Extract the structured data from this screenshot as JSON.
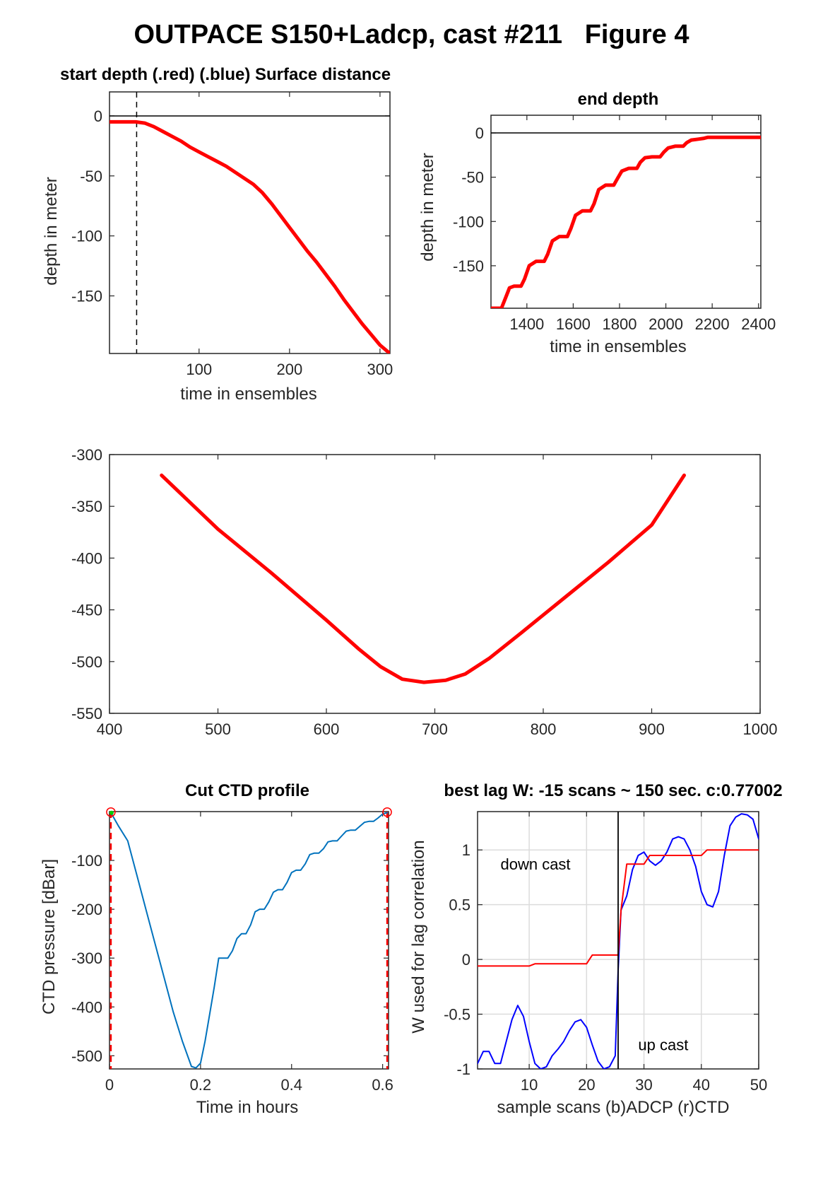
{
  "figure_title": "OUTPACE S150+Ladcp, cast #211   Figure 4",
  "colors": {
    "red": "#ff0000",
    "blue": "#0000ff",
    "ctd_blue": "#0072bd",
    "axis": "#262626",
    "grid": "#dcdcdc",
    "green": "#00cc00"
  },
  "chart_data": [
    {
      "id": "start",
      "type": "line",
      "title": "start depth (.red) (.blue) Surface distance",
      "xlabel": "time in ensembles",
      "ylabel": "depth in meter",
      "xlim": [
        1,
        311
      ],
      "ylim": [
        -198,
        20
      ],
      "xticks": [
        100,
        200,
        300
      ],
      "yticks": [
        0,
        -50,
        -100,
        -150
      ],
      "hline": 0,
      "vline_dashed": 31,
      "series": [
        {
          "color": "red",
          "x": [
            1,
            10,
            20,
            30,
            40,
            50,
            60,
            70,
            80,
            90,
            100,
            110,
            120,
            130,
            140,
            150,
            160,
            170,
            180,
            190,
            200,
            210,
            220,
            230,
            240,
            250,
            260,
            270,
            280,
            290,
            300,
            311
          ],
          "y": [
            -5,
            -5,
            -5,
            -5,
            -6,
            -9,
            -13,
            -17,
            -21,
            -26,
            -30,
            -34,
            -38,
            -42,
            -47,
            -52,
            -57,
            -64,
            -73,
            -83,
            -93,
            -103,
            -113,
            -122,
            -132,
            -142,
            -153,
            -163,
            -173,
            -182,
            -191,
            -198
          ]
        }
      ]
    },
    {
      "id": "end",
      "type": "line",
      "title": "end depth",
      "xlabel": "time in ensembles",
      "ylabel": "depth in meter",
      "xlim": [
        1245,
        2410
      ],
      "ylim": [
        -198,
        20
      ],
      "xticks": [
        1400,
        1600,
        1800,
        2000,
        2200,
        2400
      ],
      "yticks": [
        0,
        -50,
        -100,
        -150
      ],
      "hline": 0,
      "series": [
        {
          "color": "red",
          "x": [
            1245,
            1290,
            1310,
            1325,
            1345,
            1375,
            1390,
            1410,
            1440,
            1475,
            1490,
            1510,
            1540,
            1575,
            1590,
            1610,
            1640,
            1675,
            1690,
            1710,
            1740,
            1775,
            1790,
            1810,
            1840,
            1875,
            1890,
            1910,
            1940,
            1975,
            1990,
            2010,
            2040,
            2075,
            2090,
            2110,
            2140,
            2165,
            2180,
            2200,
            2300,
            2410
          ],
          "y": [
            -198,
            -198,
            -185,
            -175,
            -173,
            -173,
            -165,
            -150,
            -145,
            -145,
            -137,
            -122,
            -117,
            -117,
            -108,
            -93,
            -88,
            -88,
            -80,
            -64,
            -59,
            -59,
            -52,
            -43,
            -40,
            -40,
            -33,
            -28,
            -27,
            -27,
            -22,
            -17,
            -15,
            -15,
            -11,
            -8,
            -7,
            -6,
            -5,
            -5,
            -5,
            -5
          ]
        }
      ]
    },
    {
      "id": "middle",
      "type": "line",
      "xlim": [
        400,
        1000
      ],
      "ylim": [
        -550,
        -300
      ],
      "xticks": [
        400,
        500,
        600,
        700,
        800,
        900,
        1000
      ],
      "yticks": [
        -300,
        -350,
        -400,
        -450,
        -500,
        -550
      ],
      "series": [
        {
          "color": "red",
          "x": [
            448,
            500,
            550,
            600,
            630,
            650,
            670,
            690,
            710,
            728,
            750,
            780,
            820,
            860,
            900,
            930
          ],
          "y": [
            -320,
            -372,
            -415,
            -460,
            -488,
            -505,
            -517,
            -520,
            -518,
            -512,
            -497,
            -472,
            -438,
            -404,
            -368,
            -320
          ]
        }
      ]
    },
    {
      "id": "ctd",
      "type": "line",
      "title": "Cut CTD profile",
      "xlabel": "Time in hours",
      "ylabel": "CTD pressure [dBar]",
      "xlim": [
        0,
        0.613
      ],
      "ylim": [
        -527,
        0
      ],
      "xticks": [
        0,
        0.2,
        0.4,
        0.6
      ],
      "xticklabels": [
        "0",
        "0.2",
        "0.4",
        "0.6"
      ],
      "yticks": [
        -100,
        -200,
        -300,
        -400,
        -500
      ],
      "cut_lines": [
        0.003,
        0.61
      ],
      "markers": [
        {
          "x": 0.003,
          "y": -1
        },
        {
          "x": 0.61,
          "y": -1
        }
      ],
      "series": [
        {
          "color": "ctd_blue",
          "x": [
            0.003,
            0.02,
            0.04,
            0.06,
            0.08,
            0.1,
            0.12,
            0.14,
            0.16,
            0.18,
            0.19,
            0.2,
            0.21,
            0.22,
            0.23,
            0.24,
            0.26,
            0.27,
            0.28,
            0.29,
            0.3,
            0.31,
            0.32,
            0.33,
            0.34,
            0.35,
            0.36,
            0.37,
            0.38,
            0.39,
            0.4,
            0.41,
            0.42,
            0.43,
            0.44,
            0.45,
            0.46,
            0.47,
            0.48,
            0.49,
            0.5,
            0.51,
            0.52,
            0.53,
            0.54,
            0.55,
            0.56,
            0.57,
            0.58,
            0.59,
            0.6,
            0.61
          ],
          "y": [
            -2,
            -30,
            -60,
            -130,
            -200,
            -270,
            -340,
            -410,
            -470,
            -522,
            -525,
            -515,
            -470,
            -415,
            -360,
            -300,
            -300,
            -285,
            -260,
            -250,
            -250,
            -232,
            -205,
            -200,
            -200,
            -185,
            -165,
            -160,
            -160,
            -145,
            -125,
            -120,
            -120,
            -107,
            -88,
            -85,
            -85,
            -76,
            -62,
            -60,
            -60,
            -50,
            -40,
            -38,
            -38,
            -30,
            -22,
            -20,
            -20,
            -13,
            -5,
            -2
          ]
        }
      ]
    },
    {
      "id": "lag",
      "type": "line",
      "title": "best lag W: -15 scans ~ 150 sec.  c:0.77002",
      "xlabel": "sample scans (b)ADCP (r)CTD",
      "ylabel": "W used for lag correlation",
      "xlim": [
        1,
        50
      ],
      "ylim": [
        -1,
        1.35
      ],
      "xticks": [
        10,
        20,
        30,
        40,
        50
      ],
      "yticks": [
        1,
        0.5,
        0,
        -0.5,
        -1
      ],
      "yticklabels": [
        "1",
        "0.5",
        "0",
        "-0.5",
        "-1"
      ],
      "grid": true,
      "vline": 25.5,
      "annotations": [
        {
          "text": "down cast",
          "x": 5,
          "y": 0.82
        },
        {
          "text": "up cast",
          "x": 29,
          "y": -0.83
        }
      ],
      "series": [
        {
          "color": "blue",
          "x": [
            1,
            2,
            3,
            4,
            5,
            6,
            7,
            8,
            9,
            10,
            11,
            12,
            13,
            14,
            15,
            16,
            17,
            18,
            19,
            20,
            21,
            22,
            23,
            24,
            25,
            25.5,
            26,
            27,
            28,
            29,
            30,
            31,
            32,
            33,
            34,
            35,
            36,
            37,
            38,
            39,
            40,
            41,
            42,
            43,
            44,
            45,
            46,
            47,
            48,
            49,
            50
          ],
          "y": [
            -0.95,
            -0.84,
            -0.84,
            -0.95,
            -0.95,
            -0.75,
            -0.55,
            -0.42,
            -0.52,
            -0.75,
            -0.95,
            -1.0,
            -0.98,
            -0.88,
            -0.82,
            -0.75,
            -0.65,
            -0.57,
            -0.55,
            -0.62,
            -0.78,
            -0.93,
            -1.0,
            -0.98,
            -0.88,
            -0.1,
            0.45,
            0.58,
            0.82,
            0.95,
            0.98,
            0.9,
            0.86,
            0.9,
            0.98,
            1.1,
            1.12,
            1.1,
            1.0,
            0.85,
            0.62,
            0.5,
            0.48,
            0.62,
            0.95,
            1.22,
            1.3,
            1.33,
            1.32,
            1.28,
            1.1
          ]
        },
        {
          "color": "red",
          "x": [
            1,
            10,
            11,
            20,
            21,
            25,
            25.5,
            26,
            27,
            28,
            29,
            30,
            31,
            32,
            33,
            40,
            41,
            50
          ],
          "y": [
            -0.06,
            -0.06,
            -0.04,
            -0.04,
            0.04,
            0.04,
            0.04,
            0.45,
            0.87,
            0.87,
            0.87,
            0.87,
            0.95,
            0.95,
            0.95,
            0.95,
            1.0,
            1.0
          ]
        }
      ]
    }
  ]
}
